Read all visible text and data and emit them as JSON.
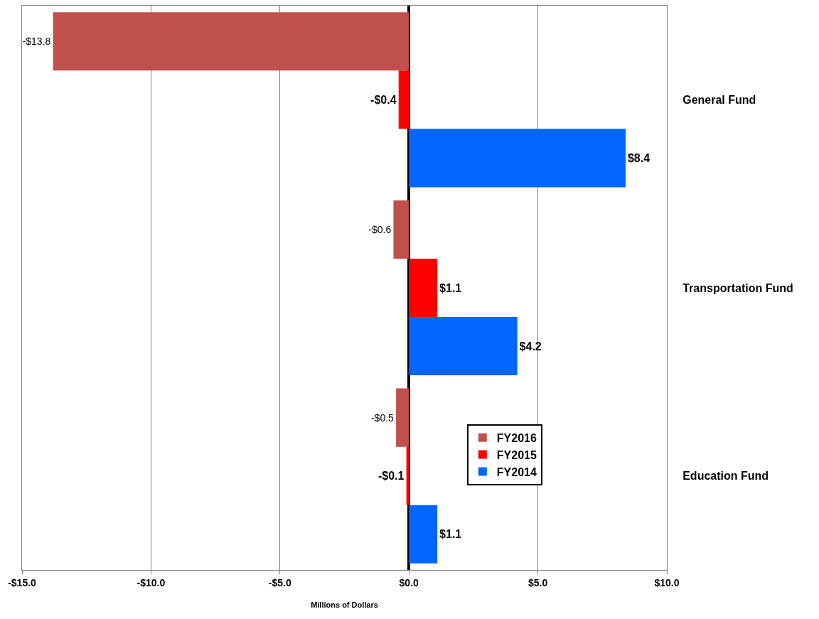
{
  "chart_data": {
    "type": "bar",
    "orientation": "horizontal",
    "xlabel": "Millions of Dollars",
    "categories": [
      "General Fund",
      "Transportation Fund",
      "Education Fund"
    ],
    "series": [
      {
        "name": "FY2016",
        "color": "#c0504d",
        "values": [
          -13.8,
          -0.6,
          -0.5
        ],
        "value_labels": [
          "-$13.8",
          "-$0.6",
          "-$0.5"
        ]
      },
      {
        "name": "FY2015",
        "color": "#ff0000",
        "values": [
          -0.4,
          1.1,
          -0.1
        ],
        "value_labels": [
          "-$0.4",
          "$1.1",
          "-$0.1"
        ]
      },
      {
        "name": "FY2014",
        "color": "#0066ff",
        "values": [
          8.4,
          4.2,
          1.1
        ],
        "value_labels": [
          "$8.4",
          "$4.2",
          "$1.1"
        ]
      }
    ],
    "xlim": [
      -15,
      10
    ],
    "xticks": [
      {
        "value": -15,
        "label": "-$15.0"
      },
      {
        "value": -10,
        "label": "-$10.0"
      },
      {
        "value": -5,
        "label": "-$5.0"
      },
      {
        "value": 0,
        "label": "$0.0"
      },
      {
        "value": 5,
        "label": "$5.0"
      },
      {
        "value": 10,
        "label": "$10.0"
      }
    ],
    "grid": "x",
    "legend": "bottom right"
  }
}
